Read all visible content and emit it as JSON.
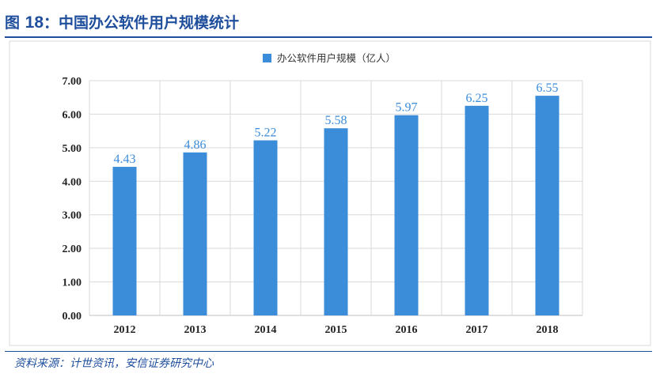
{
  "figure": {
    "title_prefix": "图",
    "title_number": "18",
    "title_text": "：中国办公软件用户规模统计",
    "source": "资料来源：计世资讯，安信证券研究中心"
  },
  "colors": {
    "bar": "#3c8dd9",
    "title": "#1f4e9c",
    "grid": "#d9d9d9"
  },
  "chart_data": {
    "type": "bar",
    "categories": [
      "2012",
      "2013",
      "2014",
      "2015",
      "2016",
      "2017",
      "2018"
    ],
    "series": [
      {
        "name": "办公软件用户规模（亿人）",
        "values": [
          4.43,
          4.86,
          5.22,
          5.58,
          5.97,
          6.25,
          6.55
        ]
      }
    ],
    "data_labels": [
      "4.43",
      "4.86",
      "5.22",
      "5.58",
      "5.97",
      "6.25",
      "6.55"
    ],
    "yticks": [
      "0.00",
      "1.00",
      "2.00",
      "3.00",
      "4.00",
      "5.00",
      "6.00",
      "7.00"
    ],
    "ylim": [
      0,
      7
    ],
    "grid": true,
    "legend_position": "top-center"
  }
}
